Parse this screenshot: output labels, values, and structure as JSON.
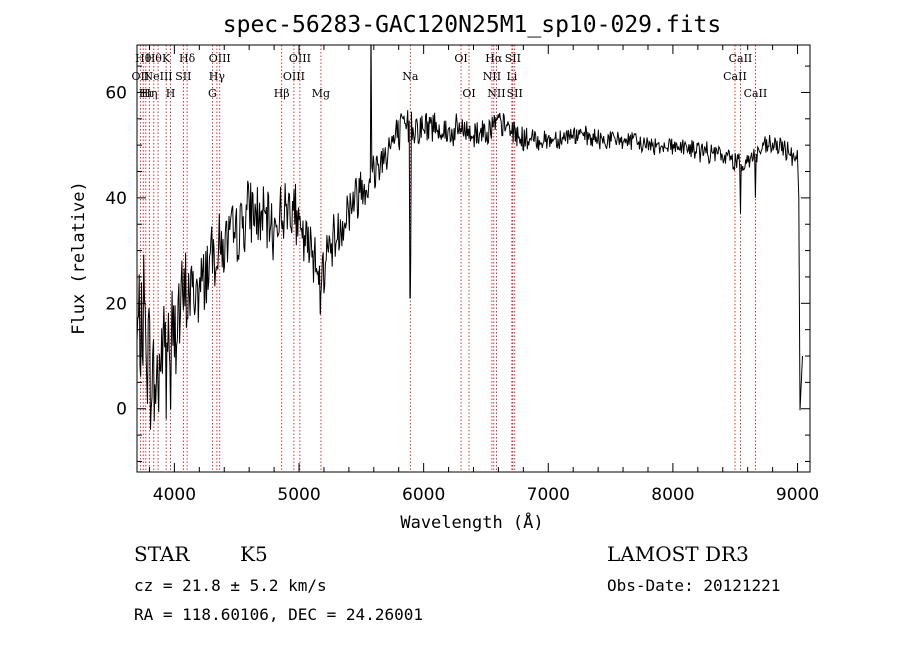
{
  "chart_data": {
    "type": "line",
    "title": "spec-56283-GAC120N25M1_sp10-029.fits",
    "xlabel": "Wavelength (Å)",
    "ylabel": "Flux (relative)",
    "xlim": [
      3700,
      9100
    ],
    "ylim": [
      -12,
      69
    ],
    "xticks": [
      4000,
      5000,
      6000,
      7000,
      8000,
      9000
    ],
    "yticks": [
      0,
      20,
      40,
      60
    ],
    "grid": false,
    "series": [
      {
        "name": "flux",
        "anchors": [
          [
            3700,
            12
          ],
          [
            3760,
            18
          ],
          [
            3800,
            8
          ],
          [
            3850,
            3
          ],
          [
            3900,
            12
          ],
          [
            4000,
            15
          ],
          [
            4100,
            22
          ],
          [
            4200,
            22
          ],
          [
            4300,
            30
          ],
          [
            4400,
            31
          ],
          [
            4500,
            33
          ],
          [
            4600,
            38
          ],
          [
            4700,
            36
          ],
          [
            4800,
            34
          ],
          [
            4850,
            37
          ],
          [
            4900,
            38
          ],
          [
            4950,
            40
          ],
          [
            5000,
            33
          ],
          [
            5100,
            30
          ],
          [
            5150,
            29
          ],
          [
            5180,
            25
          ],
          [
            5200,
            28
          ],
          [
            5250,
            31
          ],
          [
            5300,
            33
          ],
          [
            5400,
            38
          ],
          [
            5500,
            42
          ],
          [
            5600,
            45
          ],
          [
            5700,
            49
          ],
          [
            5800,
            52
          ],
          [
            5900,
            54
          ],
          [
            6000,
            53
          ],
          [
            6100,
            54
          ],
          [
            6200,
            52
          ],
          [
            6300,
            53
          ],
          [
            6400,
            52
          ],
          [
            6500,
            53
          ],
          [
            6600,
            54
          ],
          [
            6700,
            53
          ],
          [
            6800,
            51
          ],
          [
            6900,
            51
          ],
          [
            7000,
            51
          ],
          [
            7200,
            52
          ],
          [
            7400,
            51
          ],
          [
            7600,
            51
          ],
          [
            7800,
            50
          ],
          [
            8000,
            50
          ],
          [
            8200,
            49
          ],
          [
            8400,
            48
          ],
          [
            8500,
            47
          ],
          [
            8600,
            47
          ],
          [
            8700,
            49
          ],
          [
            8800,
            50
          ],
          [
            8900,
            49
          ],
          [
            9000,
            48
          ]
        ],
        "spikes": [
          [
            5577,
            69
          ],
          [
            5893,
            21
          ],
          [
            5896,
            28
          ],
          [
            8542,
            37
          ],
          [
            8662,
            40
          ],
          [
            5172,
            18
          ],
          [
            5175,
            22
          ],
          [
            3934,
            -2
          ],
          [
            3969,
            0
          ]
        ],
        "noise": [
          [
            3700,
            12
          ],
          [
            4000,
            9
          ],
          [
            4300,
            6
          ],
          [
            4800,
            5
          ],
          [
            5200,
            5
          ],
          [
            5600,
            4
          ],
          [
            6000,
            3
          ],
          [
            6500,
            2.5
          ],
          [
            7000,
            1.8
          ],
          [
            8000,
            1.6
          ],
          [
            9000,
            2
          ]
        ],
        "tail": [
          [
            9010,
            40
          ],
          [
            9020,
            -0.3
          ],
          [
            9040,
            10
          ]
        ]
      }
    ],
    "lines": [
      {
        "wl": 3727,
        "labels": [
          {
            "t": "OII",
            "row": 2
          }
        ]
      },
      {
        "wl": 3750,
        "labels": [
          {
            "t": "Hθ",
            "row": 1
          }
        ]
      },
      {
        "wl": 3771,
        "labels": [
          {
            "t": "Hι",
            "row": 3
          }
        ]
      },
      {
        "wl": 3799,
        "labels": [
          {
            "t": "Hη",
            "row": 3
          }
        ]
      },
      {
        "wl": 3835,
        "labels": [
          {
            "t": "Hθ",
            "row": 1
          }
        ]
      },
      {
        "wl": 3869,
        "labels": [
          {
            "t": "NeIII",
            "row": 2
          }
        ]
      },
      {
        "wl": 3934,
        "labels": [
          {
            "t": "K",
            "row": 1
          }
        ]
      },
      {
        "wl": 3969,
        "labels": [
          {
            "t": "H",
            "row": 3
          }
        ]
      },
      {
        "wl": 4072,
        "labels": [
          {
            "t": "SII",
            "row": 2
          }
        ]
      },
      {
        "wl": 4102,
        "labels": [
          {
            "t": "Hδ",
            "row": 1
          }
        ]
      },
      {
        "wl": 4305,
        "labels": [
          {
            "t": "G",
            "row": 3
          }
        ]
      },
      {
        "wl": 4341,
        "labels": [
          {
            "t": "Hγ",
            "row": 2
          }
        ]
      },
      {
        "wl": 4364,
        "labels": [
          {
            "t": "OIII",
            "row": 1
          }
        ]
      },
      {
        "wl": 4861,
        "labels": [
          {
            "t": "Hβ",
            "row": 3
          }
        ]
      },
      {
        "wl": 4959,
        "labels": [
          {
            "t": "OIII",
            "row": 2
          }
        ]
      },
      {
        "wl": 5007,
        "labels": [
          {
            "t": "OIII",
            "row": 1
          }
        ]
      },
      {
        "wl": 5176,
        "labels": [
          {
            "t": "Mg",
            "row": 3
          }
        ]
      },
      {
        "wl": 5893,
        "labels": [
          {
            "t": "Na",
            "row": 2
          }
        ]
      },
      {
        "wl": 6300,
        "labels": [
          {
            "t": "OI",
            "row": 1
          }
        ]
      },
      {
        "wl": 6364,
        "labels": [
          {
            "t": "OI",
            "row": 3
          }
        ]
      },
      {
        "wl": 6548,
        "labels": [
          {
            "t": "NII",
            "row": 2
          }
        ]
      },
      {
        "wl": 6563,
        "labels": [
          {
            "t": "Hα",
            "row": 1
          }
        ]
      },
      {
        "wl": 6584,
        "labels": [
          {
            "t": "NII",
            "row": 3
          }
        ]
      },
      {
        "wl": 6708,
        "labels": [
          {
            "t": "Li",
            "row": 2
          }
        ]
      },
      {
        "wl": 6716,
        "labels": [
          {
            "t": "SII",
            "row": 1
          }
        ]
      },
      {
        "wl": 6731,
        "labels": [
          {
            "t": "SII",
            "row": 3
          }
        ]
      },
      {
        "wl": 8498,
        "labels": [
          {
            "t": "CaII",
            "row": 2
          }
        ]
      },
      {
        "wl": 8542,
        "labels": [
          {
            "t": "CaII",
            "row": 1
          }
        ]
      },
      {
        "wl": 8662,
        "labels": [
          {
            "t": "CaII",
            "row": 3
          }
        ]
      }
    ],
    "line_color": "#cc0000",
    "trace_color": "#000000"
  },
  "footer": {
    "class": "STAR",
    "subclass": "K5",
    "survey": "LAMOST DR3",
    "cz": "cz = 21.8 ± 5.2 km/s",
    "obs_date": "Obs-Date: 20121221",
    "coords": "RA = 118.60106, DEC =  24.26001"
  }
}
